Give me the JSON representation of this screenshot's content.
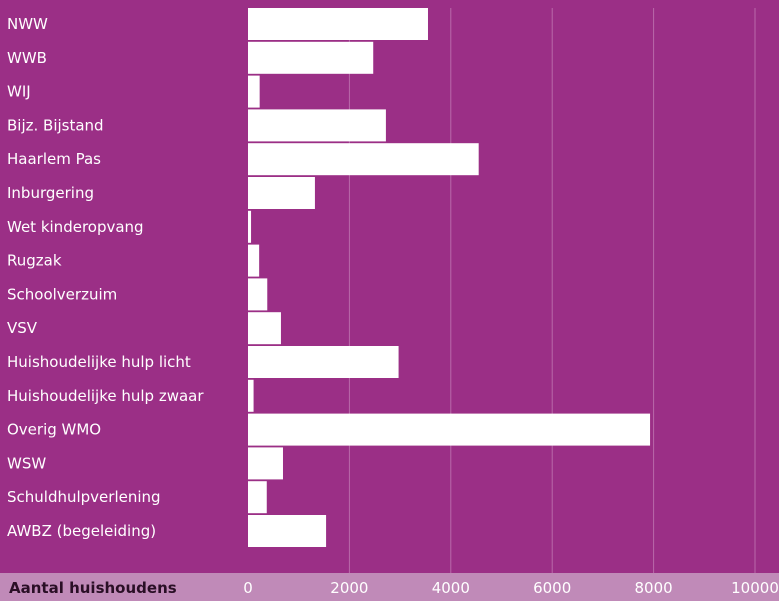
{
  "chart_data": {
    "type": "bar",
    "orientation": "horizontal",
    "title": "",
    "xlabel": "Aantal huishoudens",
    "ylabel": "",
    "categories": [
      "NWW",
      "WWB",
      "WIJ",
      "Bijz. Bijstand",
      "Haarlem Pas",
      "Inburgering",
      "Wet kinderopvang",
      "Rugzak",
      "Schoolverzuim",
      "VSV",
      "Huishoudelijke hulp licht",
      "Huishoudelijke hulp zwaar",
      "Overig WMO",
      "WSW",
      "Schuldhulpverlening",
      "AWBZ (begeleiding)"
    ],
    "values": [
      3550,
      2470,
      230,
      2720,
      4550,
      1320,
      60,
      220,
      380,
      650,
      2970,
      110,
      7930,
      690,
      370,
      1540
    ],
    "xlim": [
      0,
      10000
    ],
    "xticks": [
      0,
      2000,
      4000,
      6000,
      8000,
      10000
    ],
    "tick_labels": [
      "0",
      "2000",
      "4000",
      "6000",
      "8000",
      "10000"
    ],
    "grid": true,
    "legend": "none",
    "colors": {
      "background": "#9b2f86",
      "axis_band": "#c08ab8",
      "bar": "#ffffff",
      "gridline": "#b96aaa",
      "text": "#ffffff",
      "axis_title": "#2a0f26"
    }
  }
}
